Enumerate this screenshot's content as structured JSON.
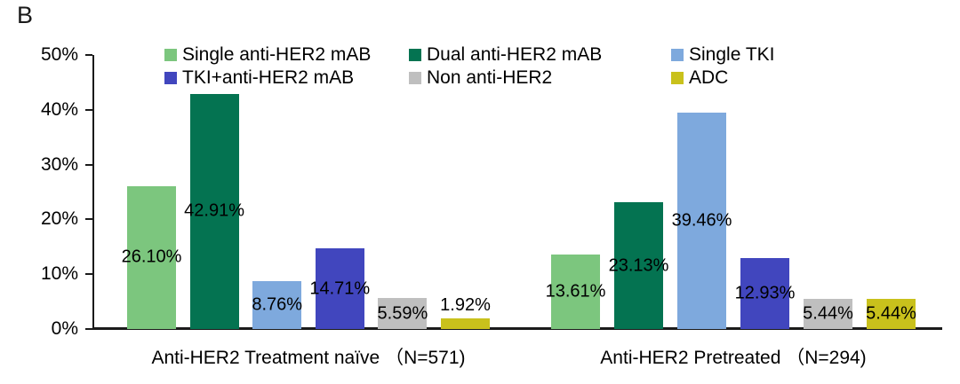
{
  "panel_label": "B",
  "chart_data": {
    "type": "bar",
    "title": "",
    "xlabel": "",
    "ylabel": "",
    "categories": [
      "Anti-HER2 Treatment naïve （N=571)",
      "Anti-HER2 Pretreated （N=294)"
    ],
    "series": [
      {
        "name": "Single anti-HER2 mAB",
        "color": "#7CC67E",
        "values": [
          26.1,
          13.61
        ],
        "labels": [
          "26.10%",
          "13.61%"
        ]
      },
      {
        "name": "Dual anti-HER2 mAB",
        "color": "#047351",
        "values": [
          42.91,
          23.13
        ],
        "labels": [
          "42.91%",
          "23.13%"
        ]
      },
      {
        "name": "Single TKI",
        "color": "#7EA9DD",
        "values": [
          8.76,
          39.46
        ],
        "labels": [
          "8.76%",
          "39.46%"
        ]
      },
      {
        "name": "TKI+anti-HER2 mAB",
        "color": "#4146BE",
        "values": [
          14.71,
          12.93
        ],
        "labels": [
          "14.71%",
          "12.93%"
        ]
      },
      {
        "name": "Non anti-HER2",
        "color": "#BFBFBF",
        "values": [
          5.59,
          5.44
        ],
        "labels": [
          "5.59%",
          "5.44%"
        ]
      },
      {
        "name": "ADC",
        "color": "#C9C11C",
        "values": [
          1.92,
          5.44
        ],
        "labels": [
          "1.92%",
          "5.44%"
        ]
      }
    ],
    "y_axis": {
      "ticks": [
        "0%",
        "10%",
        "20%",
        "30%",
        "40%",
        "50%"
      ],
      "min": 0,
      "max": 50
    },
    "grid": false,
    "legend_position": "top",
    "axis_color": "#1a1a1a"
  }
}
